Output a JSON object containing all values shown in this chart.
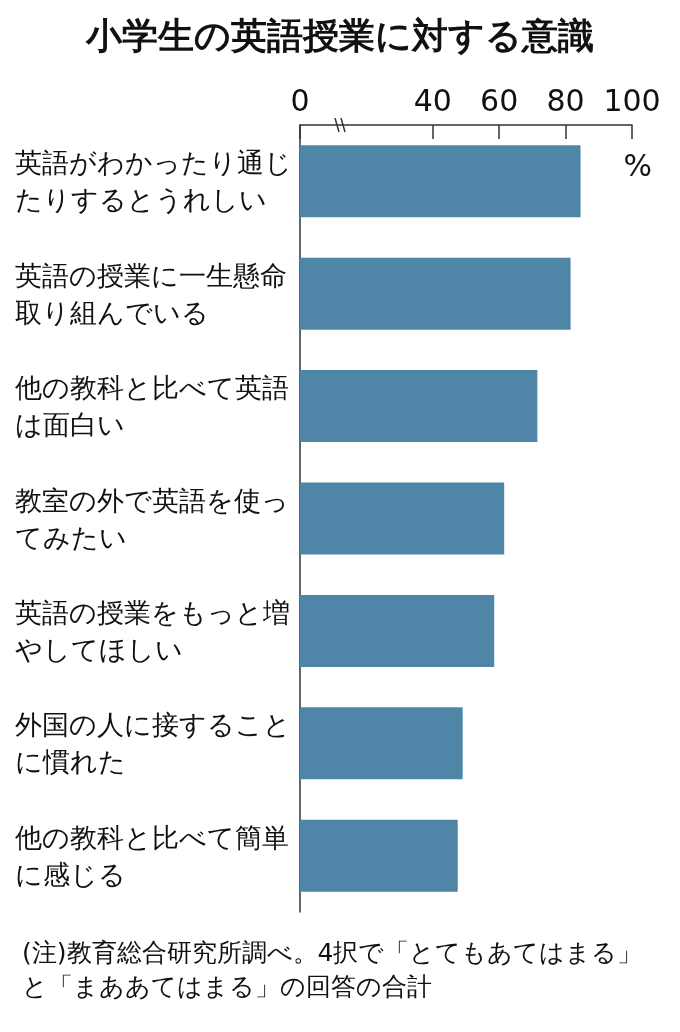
{
  "chart_data": {
    "type": "bar",
    "orientation": "horizontal",
    "title": "小学生の英語授業に対する意識",
    "xlabel": "%",
    "categories": [
      "英語がわかったり通じたりするとうれしい",
      "英語の授業に一生懸命取り組んでいる",
      "他の教科と比べて英語は面白い",
      "教室の外で英語を使ってみたい",
      "英語の授業をもっと増やしてほしい",
      "外国の人に接することに慣れた",
      "他の教科と比べて簡単に感じる"
    ],
    "values": [
      84.5,
      81.5,
      71.5,
      61.5,
      58.5,
      49,
      47.5
    ],
    "color": "#4f86a8",
    "xlim": [
      0,
      100
    ],
    "xticks": [
      0,
      40,
      60,
      80,
      100
    ],
    "grid": false,
    "annotations": [
      "(注)教育総合研究所調べ。4択で「とてもあてはまる」と「まああてはまる」の回答の合計"
    ]
  }
}
